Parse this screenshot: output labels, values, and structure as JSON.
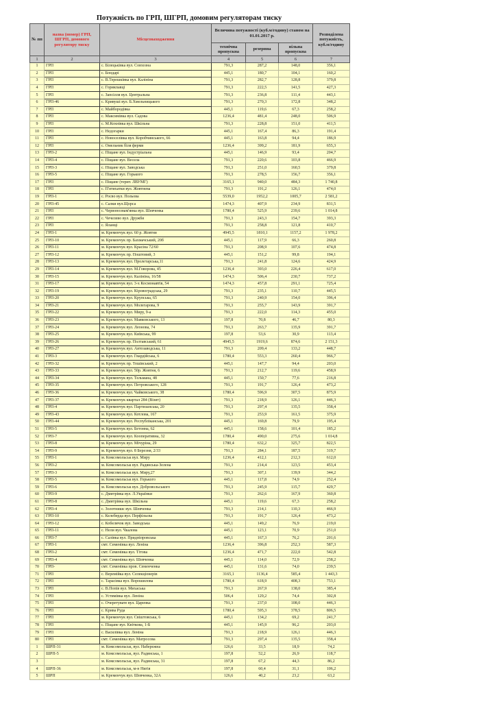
{
  "title": "Потужність по ГРП, ШГРП, домовим регуляторам тиску",
  "header": {
    "col_num": "№ пп",
    "col_name": "назва (номер) ГРП, ШГРП, домового регулятору тиску",
    "col_location": "Місцезнаходження",
    "col_capacity_group": "Величина потужності (куб.м/годину) станом на 01.01.2017 р.",
    "col_technical": "технічна пропускна",
    "col_reserve": "резервна",
    "col_free": "вільна пропускна",
    "col_distributed": "Розподілена потужність, куб.м/годину",
    "numbering": [
      "1",
      "2",
      "3",
      "4",
      "5",
      "6",
      "7"
    ]
  },
  "colors": {
    "header_bg": "#c9c9c9",
    "row_bg": "#ffffcc",
    "header_red_text": "#e02828"
  },
  "rows": [
    [
      "1",
      "ГРП",
      "с. Білецьківка вул. Совхозна",
      "791,3",
      "287,2",
      "148,0",
      "356,1"
    ],
    [
      "2",
      "ГРП",
      "с. Бондарі",
      "445,1",
      "180,7",
      "104,1",
      "160,2"
    ],
    [
      "3",
      "ГРП",
      "с. В.Терешківка вул. Калініна",
      "791,3",
      "282,7",
      "128,8",
      "379,8"
    ],
    [
      "4",
      "ГРП",
      "с. Горикпавці",
      "791,3",
      "222,5",
      "141,5",
      "427,3"
    ],
    [
      "5",
      "ГРП",
      "с. Запсілля вул. Центральна",
      "791,3",
      "236,8",
      "111,4",
      "443,1"
    ],
    [
      "6",
      "ГРП-46",
      "с. Кривуші вул. Б.Хмельницького",
      "791,3",
      "270,3",
      "172,8",
      "348,2"
    ],
    [
      "7",
      "ГРП",
      "с. Майбородівка",
      "445,1",
      "119,6",
      "67,3",
      "258,2"
    ],
    [
      "8",
      "ГРП",
      "с. Максимівка вул. Садова",
      "1236,4",
      "481,4",
      "248,0",
      "506,9"
    ],
    [
      "9",
      "ГРП",
      "с. М.Кохнівка вул. Шкільна",
      "791,3",
      "228,8",
      "151,0",
      "411,5"
    ],
    [
      "10",
      "ГРП",
      "с. Недогарки",
      "445,1",
      "167,4",
      "86,3",
      "191,4"
    ],
    [
      "11",
      "ГРП",
      "с. Новоселівка вул. Коробчинського, 66",
      "445,1",
      "163,8",
      "94,4",
      "186,9"
    ],
    [
      "12",
      "ГРП",
      "с. Омельник біля ферми",
      "1236,4",
      "399,2",
      "181,9",
      "655,3"
    ],
    [
      "13",
      "ГРП-2",
      "с. Піщане вул. Індустріальна",
      "445,1",
      "146,9",
      "93,4",
      "204,7"
    ],
    [
      "14",
      "ГРП-4",
      "с. Піщане вул. Весела",
      "791,3",
      "220,6",
      "103,8",
      "466,9"
    ],
    [
      "15",
      "ГРП-3",
      "с. Піщане вул. Заводська",
      "791,3",
      "251,0",
      "160,5",
      "379,8"
    ],
    [
      "16",
      "ГРП-5",
      "с. Піщане вул. Горького",
      "791,3",
      "278,5",
      "156,7",
      "356,1"
    ],
    [
      "17",
      "ГРП",
      "с. Піщане (терит. ЛВУМГ)",
      "3165,1",
      "940,0",
      "484,3",
      "1 740,8"
    ],
    [
      "18",
      "ГРП",
      "с. П'ятихатки вул. Жовтнева",
      "791,3",
      "191,2",
      "126,1",
      "474,0"
    ],
    [
      "19",
      "ГРП-1",
      "с. Росво вул. Польова",
      "5539,0",
      "1952,2",
      "1005,7",
      "2 581,2"
    ],
    [
      "20",
      "ГРП-45",
      "с. Салки вул.Щорса",
      "1474,3",
      "407,9",
      "234,9",
      "831,5"
    ],
    [
      "21",
      "ГРП",
      "с. Червонознам'янка вул. Шевченка",
      "1780,4",
      "525,9",
      "239,6",
      "1 014,8"
    ],
    [
      "22",
      "ГРП",
      "с. Чечелево вул. Дружби",
      "791,3",
      "243,3",
      "154,7",
      "393,3"
    ],
    [
      "23",
      "ГРП",
      "с. Яланці",
      "791,3",
      "258,8",
      "121,8",
      "410,7"
    ],
    [
      "24",
      "ГРП-1",
      "м. Кременчук вул. 60 р. Жовтня",
      "4945,5",
      "1810,1",
      "1157,2",
      "1 978,2"
    ],
    [
      "25",
      "ГРП-10",
      "м. Кременчук пр. Бахмачський, 20б",
      "445,1",
      "117,9",
      "66,3",
      "260,8"
    ],
    [
      "26",
      "ГРП-11",
      "м. Кременчук вул. Красіна 72/60",
      "791,3",
      "208,9",
      "107,6",
      "474,8"
    ],
    [
      "27",
      "ГРП-12",
      "м. Кременчук пр. Поштовий, 3",
      "445,1",
      "151,2",
      "99,8",
      "194,1"
    ],
    [
      "28",
      "ГРП-13",
      "м. Кременчук вул. Пролетарська,11",
      "791,3",
      "241,8",
      "124,6",
      "424,9"
    ],
    [
      "29",
      "ГРП-14",
      "м. Кременчук вул. М.Говорова, 45",
      "1236,4",
      "393,0",
      "226,4",
      "617,0"
    ],
    [
      "30",
      "ГРП-15",
      "м. Кременчук вул. Калініна, 16/58",
      "1474,3",
      "506,4",
      "230,7",
      "737,2"
    ],
    [
      "31",
      "ГРП-17",
      "м. Кременчук вул. 3-х Космонавтів, 54",
      "1474,3",
      "457,8",
      "291,1",
      "725,4"
    ],
    [
      "32",
      "ГРП-19",
      "м. Кременчук вул. Кіровоградська, 29",
      "791,3",
      "235,1",
      "110,7",
      "445,5"
    ],
    [
      "33",
      "ГРП-20",
      "м. Кременчук вул. Крупська, 65",
      "791,3",
      "240,9",
      "154,0",
      "396,4"
    ],
    [
      "34",
      "ГРП-21",
      "м. Кременчук вул. Молегарова, 9",
      "791,3",
      "255,7",
      "143,9",
      "391,7"
    ],
    [
      "35",
      "ГРП-22",
      "м. Кременчук вул. Миру, 9-а",
      "791,3",
      "222,0",
      "114,3",
      "455,0"
    ],
    [
      "36",
      "ГРП-23",
      "м. Кременчук вул. Маяковського, 13",
      "197,8",
      "70,8",
      "46,7",
      "80,3"
    ],
    [
      "37",
      "ГРП-24",
      "м. Кременчук вул. Леонова, 74",
      "791,3",
      "263,7",
      "135,9",
      "391,7"
    ],
    [
      "38",
      "ГРП-25",
      "м. Кременчук вул. Київська, 99",
      "197,8",
      "53,6",
      "30,9",
      "113,4"
    ],
    [
      "39",
      "ГРП-26",
      "м. Кременчук пр. Полтавський, 61",
      "4945,5",
      "1919,6",
      "874,6",
      "2 151,3"
    ],
    [
      "40",
      "ГРП-27",
      "м. Кременчук вул. Автозаводська, 11",
      "791,3",
      "209,4",
      "133,2",
      "448,7"
    ],
    [
      "41",
      "ГРП-3",
      "м. Кременчук вул. Гвардійська, 6",
      "1780,4",
      "553,3",
      "260,4",
      "966,7"
    ],
    [
      "42",
      "ГРП-32",
      "м. Кременчук пр. Тешівський, 2",
      "445,1",
      "147,7",
      "94,4",
      "203,0"
    ],
    [
      "43",
      "ГРП-33",
      "м. Кременчук вул. 50р. Жовтня, 6",
      "791,3",
      "212,7",
      "119,6",
      "458,9"
    ],
    [
      "44",
      "ГРП-34",
      "м. Кременчук вул. Тельмана, 48",
      "445,1",
      "150,7",
      "77,6",
      "216,8"
    ],
    [
      "45",
      "ГРП-35",
      "м. Кременчук вул. Петровського, 128",
      "791,3",
      "191,7",
      "126,4",
      "473,2"
    ],
    [
      "46",
      "ГРП-36",
      "м. Кременчук вул. Чайковського, 38",
      "1780,4",
      "596,9",
      "307,5",
      "875,9"
    ],
    [
      "47",
      "ГРП-37",
      "м. Кременчук квартал 284 (Візит)",
      "791,3",
      "218,9",
      "126,1",
      "446,3"
    ],
    [
      "48",
      "ГРП-4",
      "м. Кременчук вул. Партизанська, 20",
      "791,3",
      "297,4",
      "135,5",
      "358,4"
    ],
    [
      "49",
      "ГРП-43",
      "м. Кременчук вул. Котлова, 167",
      "791,3",
      "253,9",
      "161,5",
      "375,9"
    ],
    [
      "50",
      "ГРП-44",
      "м. Кременчук вул. Республіканська, 201",
      "445,1",
      "169,8",
      "79,9",
      "195,4"
    ],
    [
      "51",
      "ГРП-5",
      "м. Кременчук вул. Бетонна, 62",
      "445,1",
      "158,6",
      "101,4",
      "185,2"
    ],
    [
      "52",
      "ГРП-7",
      "м. Кременчук вул. Кооперативна, 32",
      "1780,4",
      "490,0",
      "275,6",
      "1 014,8"
    ],
    [
      "53",
      "ГРП-8",
      "м. Кременчук вул. Мічуріна, 29",
      "1780,4",
      "632,2",
      "325,7",
      "822,5"
    ],
    [
      "54",
      "ГРП-9",
      "м. Кременчук вул. 8 Березня, 2/33",
      "791,3",
      "284,1",
      "187,5",
      "319,7"
    ],
    [
      "55",
      "ГРП-1",
      "м. Комсомольськ вул. Миру",
      "1236,4",
      "412,1",
      "212,3",
      "612,0"
    ],
    [
      "56",
      "ГРП-2",
      "м. Комсомольськ вул. Радянська-Зелена",
      "791,3",
      "214,4",
      "123,5",
      "453,4"
    ],
    [
      "57",
      "ГРП-3",
      "м. Комсомольськ вул. Миру,27",
      "791,3",
      "307,1",
      "139,9",
      "344,2"
    ],
    [
      "58",
      "ГРП-5",
      "м. Комсомольськ вул. Горького",
      "445,1",
      "117,8",
      "74,9",
      "252,4"
    ],
    [
      "59",
      "ГРП-6",
      "м. Комсомольськ вул. Добровольського",
      "791,3",
      "245,9",
      "115,7",
      "429,7"
    ],
    [
      "60",
      "ГРП-9",
      "с. Дмитрівка вул. Л.Українки",
      "791,3",
      "262,6",
      "167,9",
      "360,8"
    ],
    [
      "61",
      "ГРП-8",
      "с. Дмитрівка вул. Шкільна",
      "445,1",
      "119,6",
      "67,3",
      "258,2"
    ],
    [
      "62",
      "ГРП-4",
      "с. Золотнишє вул. Шевченка",
      "791,3",
      "214,1",
      "110,3",
      "466,9"
    ],
    [
      "63",
      "ГРП-10",
      "с. Келеберда вул. Перфільєва",
      "791,3",
      "191,7",
      "126,4",
      "473,2"
    ],
    [
      "64",
      "ГРП-12",
      "с. Кобелячок вул. Заводська",
      "445,1",
      "149,2",
      "76,9",
      "219,0"
    ],
    [
      "65",
      "ГРП-11",
      "с. Нели вул. Чкалова",
      "445,1",
      "123,1",
      "70,9",
      "251,0"
    ],
    [
      "66",
      "ГРП-7",
      "с. Салівка вул. Придніпровська",
      "445,1",
      "167,3",
      "76,2",
      "201,6"
    ],
    [
      "67",
      "ГРП-1",
      "смт. Семенівка вул. Леніна",
      "1236,4",
      "396,8",
      "252,3",
      "587,3"
    ],
    [
      "68",
      "ГРП-2",
      "смт. Семенівка вул. Тітова",
      "1236,4",
      "471,7",
      "222,0",
      "542,8"
    ],
    [
      "69",
      "ГРП-4",
      "смт. Семенівка вул. Шевченка",
      "445,1",
      "114,0",
      "72,9",
      "258,2"
    ],
    [
      "70",
      "ГРП-",
      "смт. Семенівка пров. Семенченка",
      "445,1",
      "131,6",
      "74,0",
      "239,5"
    ],
    [
      "71",
      "ГРП",
      "с. Веремійка вул. Селекціонерів",
      "3165,1",
      "1136,4",
      "585,4",
      "1 443,3"
    ],
    [
      "72",
      "ГРП",
      "с. Тарасівка вул. Ворошилова",
      "1780,4",
      "618,9",
      "408,3",
      "753,1"
    ],
    [
      "73",
      "ГРП",
      "с. В.Попів вул. Михаська",
      "791,3",
      "267,9",
      "138,0",
      "385,4"
    ],
    [
      "74",
      "ГРП",
      "с. Устимівка вул. Леніна",
      "506,4",
      "129,2",
      "74,4",
      "302,8"
    ],
    [
      "75",
      "ГРП",
      "с. Очеретувате вул. Царенка",
      "791,3",
      "237,0",
      "108,0",
      "446,3"
    ],
    [
      "76",
      "ГРП",
      "с. Крива Руда",
      "1780,4",
      "595,3",
      "378,5",
      "806,5"
    ],
    [
      "77",
      "ГРП",
      "м. Кременчук вул. Свіштовська, 6",
      "445,1",
      "134,2",
      "69,2",
      "241,7"
    ],
    [
      "78",
      "ГРП",
      "с. Піщане вул. Квіткова, 1-Б",
      "445,1",
      "145,9",
      "96,2",
      "203,0"
    ],
    [
      "79",
      "ГРП",
      "с. Василівка вул. Леніна",
      "791,3",
      "218,9",
      "126,1",
      "446,3"
    ],
    [
      "80",
      "ГРП",
      "смт. Семенівка вул. Матросова",
      "791,3",
      "297,4",
      "135,5",
      "358,4"
    ]
  ],
  "shrp_rows": [
    [
      "1",
      "ШРП-31",
      "м. Комсомольськ, вул. Набережна",
      "126,6",
      "33,5",
      "18,9",
      "74,2"
    ],
    [
      "2",
      "ШРП-5",
      "м. Комсомольськ, вул. Радянська, 1",
      "197,8",
      "52,2",
      "26,9",
      "118,7"
    ],
    [
      "3",
      "",
      "м. Комсомольськ, вул. Радянська, 31",
      "197,8",
      "67,2",
      "44,3",
      "86,2"
    ],
    [
      "4",
      "ШРП-36",
      "м. Комсомольськ, м-н Нигія",
      "197,8",
      "60,4",
      "31,1",
      "106,2"
    ],
    [
      "5",
      "ШРП",
      "м. Кременчук вул. Шевченка, 32А",
      "126,6",
      "40,2",
      "23,2",
      "63,2"
    ]
  ]
}
